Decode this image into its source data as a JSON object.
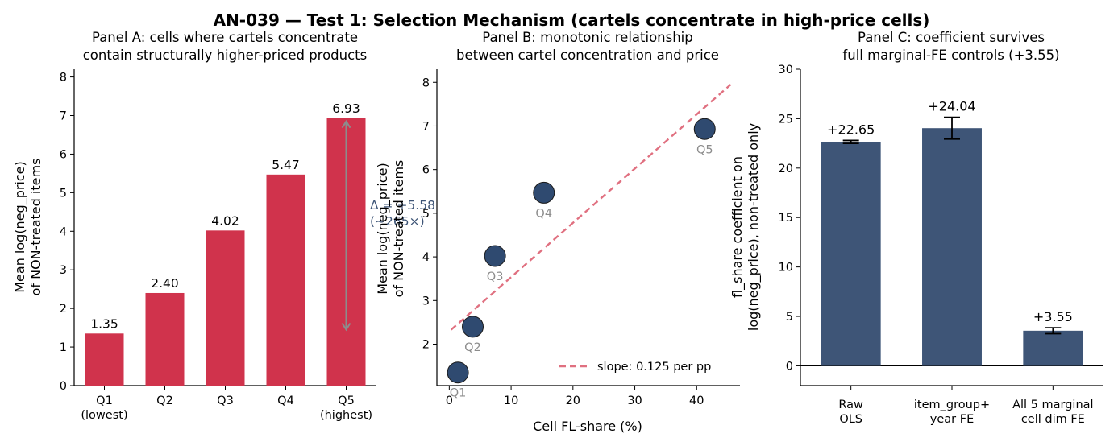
{
  "figure": {
    "title": "AN-039 — Test 1: Selection Mechanism (cartels concentrate in high-price cells)"
  },
  "colors": {
    "bar_red": "#d0334c",
    "bar_navy": "#3e5577",
    "point_navy": "#2f4a70",
    "fit_line": "#e07080",
    "arrow_gray": "#8c8c8c",
    "annot_blue": "#3e5577",
    "label_gray": "#8c8c8c"
  },
  "chart_data": [
    {
      "type": "bar",
      "title_lines": [
        "Panel A: cells where cartels concentrate",
        "contain structurally higher-priced products"
      ],
      "ylabel_lines": [
        "Mean log(neg_price)",
        "of NON-treated items"
      ],
      "categories": [
        [
          "Q1",
          "(lowest)"
        ],
        [
          "Q2"
        ],
        [
          "Q3"
        ],
        [
          "Q4"
        ],
        [
          "Q5",
          "(highest)"
        ]
      ],
      "values": [
        1.35,
        2.4,
        4.02,
        5.47,
        6.93
      ],
      "value_labels": [
        "1.35",
        "2.40",
        "4.02",
        "5.47",
        "6.93"
      ],
      "ylim": [
        0,
        8.2
      ],
      "yticks": [
        0,
        1,
        2,
        3,
        4,
        5,
        6,
        7,
        8
      ],
      "annotation": {
        "lines": [
          "Δ = +5.58",
          "(~265×)"
        ],
        "arrow_from": 1.45,
        "arrow_to": 6.85
      }
    },
    {
      "type": "scatter",
      "title_lines": [
        "Panel B: monotonic relationship",
        "between cartel concentration and price"
      ],
      "xlabel": "Cell FL-share (%)",
      "ylabel_lines": [
        "Mean log(neg_price)",
        "of NON-treated items"
      ],
      "points": [
        {
          "label": "Q1",
          "x": 1.4,
          "y": 1.35
        },
        {
          "label": "Q2",
          "x": 3.8,
          "y": 2.4
        },
        {
          "label": "Q3",
          "x": 7.4,
          "y": 4.02
        },
        {
          "label": "Q4",
          "x": 15.3,
          "y": 5.47
        },
        {
          "label": "Q5",
          "x": 41.3,
          "y": 6.93
        }
      ],
      "fit_line": {
        "x": [
          0.3,
          45.5
        ],
        "y": [
          2.33,
          7.95
        ],
        "legend": "slope: 0.125 per pp"
      },
      "xlim": [
        -2,
        47
      ],
      "ylim": [
        1.05,
        8.3
      ],
      "xticks": [
        0,
        10,
        20,
        30,
        40
      ],
      "yticks": [
        2,
        3,
        4,
        5,
        6,
        7,
        8
      ],
      "legend_position": "lower-right"
    },
    {
      "type": "bar",
      "title_lines": [
        "Panel C: coefficient survives",
        "full marginal-FE controls (+3.55)"
      ],
      "ylabel_lines": [
        "fl_share coefficient on",
        "log(neg_price), non-treated only"
      ],
      "categories": [
        [
          "Raw",
          "OLS"
        ],
        [
          "item_group+",
          "year FE"
        ],
        [
          "All 5 marginal",
          "cell dim FE"
        ]
      ],
      "values": [
        22.65,
        24.04,
        3.55
      ],
      "errors": [
        0.15,
        1.1,
        0.3
      ],
      "value_labels": [
        "+22.65",
        "+24.04",
        "+3.55"
      ],
      "ylim": [
        -2,
        30
      ],
      "yticks": [
        0,
        5,
        10,
        15,
        20,
        25,
        30
      ],
      "zero_line": true
    }
  ]
}
